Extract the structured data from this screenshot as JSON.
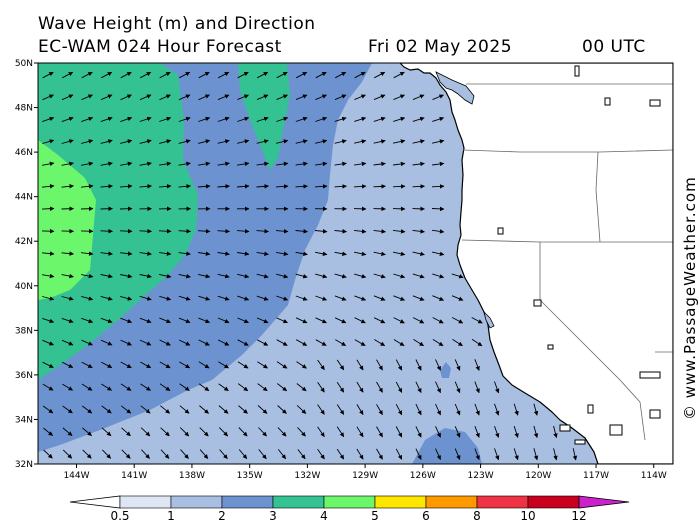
{
  "title": {
    "line1": "Wave Height (m) and Direction",
    "line2": "EC-WAM 024 Hour Forecast",
    "date": "Fri 02 May 2025",
    "time": "00 UTC"
  },
  "credit": "© www.PassageWeather.com",
  "map": {
    "lon_range": [
      -146,
      -113
    ],
    "lat_range": [
      32,
      50
    ],
    "lat_ticks": [
      "50N",
      "48N",
      "46N",
      "44N",
      "42N",
      "40N",
      "38N",
      "36N",
      "34N",
      "32N"
    ],
    "lon_ticks": [
      "144W",
      "141W",
      "138W",
      "135W",
      "132W",
      "129W",
      "126W",
      "123W",
      "120W",
      "117W",
      "114W"
    ]
  },
  "colors": {
    "land": "#ffffff",
    "ocean_0_5_1": "#dfe6f3",
    "band_1_2": "#a8bfe1",
    "band_2_3": "#6c93d0",
    "band_3_4": "#35c293",
    "band_4_5": "#6cf66c",
    "band_5_6": "#ffe600",
    "band_6_8": "#ff9900",
    "band_8_10": "#ee3344",
    "band_10_12": "#c8001e",
    "band_12_plus": "#cc22cc"
  },
  "colorbar": {
    "labels": [
      "0.5",
      "1",
      "2",
      "3",
      "4",
      "5",
      "6",
      "8",
      "10",
      "12"
    ]
  }
}
